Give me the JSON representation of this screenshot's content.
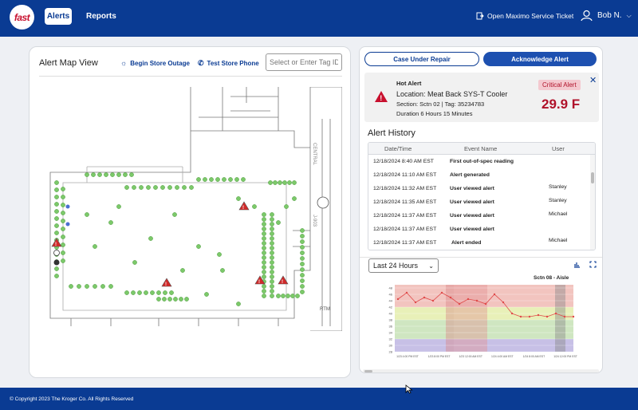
{
  "nav": {
    "logo_text": "fast",
    "alerts_label": "Alerts",
    "reports_label": "Reports",
    "ticket_label": "Open Maximo Service Ticket",
    "user_name": "Bob N."
  },
  "map": {
    "title": "Alert Map View",
    "begin_outage_label": "Begin Store Outage",
    "test_phone_label": "Test Store Phone",
    "tag_placeholder": "Select or Enter Tag ID"
  },
  "actions": {
    "repair_label": "Case Under Repair",
    "acknowledge_label": "Acknowledge Alert"
  },
  "alert": {
    "label": "Hot Alert",
    "location": "Location: Meat Back SYS-T Cooler",
    "section": "Section: Sctn 02  | Tag: 35234783",
    "duration": "Duration 6 Hours 15 Minutes",
    "severity": "Critical Alert",
    "temperature": "29.9 F",
    "severity_color": "#b0122a"
  },
  "history": {
    "title": "Alert History",
    "columns": [
      "Date/Time",
      "Event Name",
      "User"
    ],
    "rows": [
      {
        "time": "12/18/2024 8:40 AM EST",
        "event": "First out-of-spec reading",
        "user": ""
      },
      {
        "time": "12/18/2024 11:10 AM EST",
        "event": "Alert generated",
        "user": ""
      },
      {
        "time": "12/18/2024 11:32 AM EST",
        "event": "User viewed alert",
        "user": "Stanley"
      },
      {
        "time": "12/18/2024 11:35 AM EST",
        "event": "User viewed alert",
        "user": "Stanley"
      },
      {
        "time": "12/18/2024 11:37 AM EST",
        "event": "User viewed alert",
        "user": "Michael"
      },
      {
        "time": "12/18/2024 11:37 AM EST",
        "event": "User viewed alert",
        "user": ""
      },
      {
        "time": "12/18/2024 11:37 AM EST",
        "event": "Alert ended",
        "user": "Michael"
      }
    ]
  },
  "chart": {
    "range_label": "Last 24 Hours",
    "section_label": "Sctn 08 - Aisle"
  },
  "chart_data": {
    "type": "line",
    "title": "Sctn 08 - Aisle",
    "yticks": [
      28,
      30,
      32,
      34,
      36,
      38,
      40,
      42,
      44,
      46,
      48
    ],
    "ylim": [
      28,
      49
    ],
    "xtick_labels": [
      "1/23 4:00 PM EST",
      "1/23 8:00 PM EST",
      "1/23 12:00 AM EST",
      "1/24 4:00 AM EST",
      "1/24 8:00 AM EST",
      "1/24 12:00 PM EST"
    ],
    "series": [
      {
        "values": [
          44.5,
          46.5,
          43.5,
          45,
          44,
          46.5,
          45,
          43,
          44.5,
          44,
          43,
          46,
          43.5,
          40,
          39,
          39,
          39.5,
          39,
          40,
          39,
          39
        ]
      }
    ]
  },
  "footer": {
    "copyright": "© Copyright 2023 The Kroger Co. All Rights Reserved"
  }
}
